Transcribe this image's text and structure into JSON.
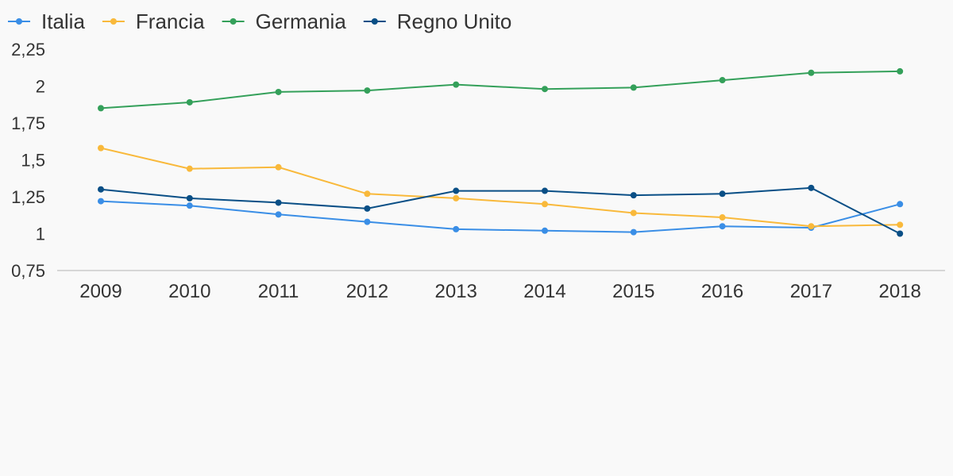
{
  "chart_data": {
    "type": "line",
    "title": "",
    "xlabel": "",
    "ylabel": "",
    "categories": [
      "2009",
      "2010",
      "2011",
      "2012",
      "2013",
      "2014",
      "2015",
      "2016",
      "2017",
      "2018"
    ],
    "ylim": [
      0.75,
      2.25
    ],
    "yticks": [
      0.75,
      1,
      1.25,
      1.5,
      1.75,
      2,
      2.25
    ],
    "ytick_labels": [
      "0,75",
      "1",
      "1,25",
      "1,5",
      "1,75",
      "2",
      "2,25"
    ],
    "grid": false,
    "legend_position": "top-left",
    "series": [
      {
        "name": "Italia",
        "color": "#3a8ee6",
        "values": [
          1.22,
          1.19,
          1.13,
          1.08,
          1.03,
          1.02,
          1.01,
          1.05,
          1.04,
          1.2
        ]
      },
      {
        "name": "Francia",
        "color": "#f9b93b",
        "values": [
          1.58,
          1.44,
          1.45,
          1.27,
          1.24,
          1.2,
          1.14,
          1.11,
          1.05,
          1.06
        ]
      },
      {
        "name": "Germania",
        "color": "#34a05a",
        "values": [
          1.85,
          1.89,
          1.96,
          1.97,
          2.01,
          1.98,
          1.99,
          2.04,
          2.09,
          2.1
        ]
      },
      {
        "name": "Regno Unito",
        "color": "#0a4f86",
        "values": [
          1.3,
          1.24,
          1.21,
          1.17,
          1.29,
          1.29,
          1.26,
          1.27,
          1.31,
          1.0
        ]
      }
    ]
  }
}
